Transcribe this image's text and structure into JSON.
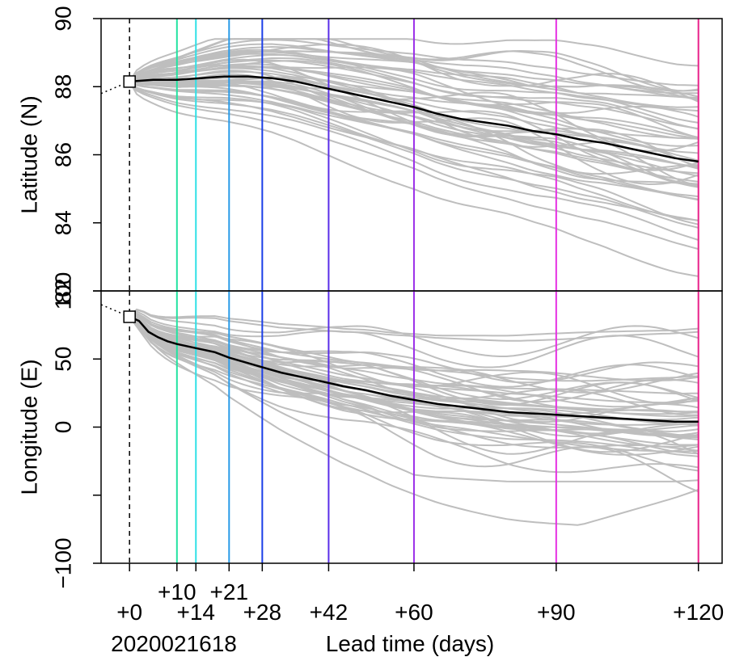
{
  "chart_data": {
    "type": "line",
    "init_label": "2020021618",
    "xlabel": "Lead time (days)",
    "xlim": [
      -6,
      125
    ],
    "lead_ticks": [
      {
        "x": 0,
        "label": "+0",
        "row": "bottom"
      },
      {
        "x": 10,
        "label": "+10",
        "row": "top"
      },
      {
        "x": 14,
        "label": "+14",
        "row": "bottom"
      },
      {
        "x": 21,
        "label": "+21",
        "row": "top"
      },
      {
        "x": 28,
        "label": "+28",
        "row": "bottom"
      },
      {
        "x": 42,
        "label": "+42",
        "row": "bottom"
      },
      {
        "x": 60,
        "label": "+60",
        "row": "bottom"
      },
      {
        "x": 90,
        "label": "+90",
        "row": "bottom"
      },
      {
        "x": 120,
        "label": "+120",
        "row": "bottom"
      }
    ],
    "lead_lines": [
      {
        "x": 10,
        "color": "#22e3a0"
      },
      {
        "x": 14,
        "color": "#2fe0e6"
      },
      {
        "x": 21,
        "color": "#2a9be8"
      },
      {
        "x": 28,
        "color": "#1c3fe8"
      },
      {
        "x": 42,
        "color": "#5a2ee8"
      },
      {
        "x": 60,
        "color": "#9a2ee8"
      },
      {
        "x": 90,
        "color": "#e62ee3"
      },
      {
        "x": 120,
        "color": "#e8208a"
      }
    ],
    "colors": {
      "ensemble": "#bebebe",
      "mean": "#000000",
      "init_line": "#000000"
    },
    "ensemble_members": 50,
    "panels": [
      {
        "name": "latitude",
        "ylabel": "Latitude (N)",
        "ylim": [
          82,
          90
        ],
        "yticks": [
          {
            "value": 82,
            "label": "82"
          },
          {
            "value": 84,
            "label": "84"
          },
          {
            "value": 86,
            "label": "86"
          },
          {
            "value": 88,
            "label": "88"
          },
          {
            "value": 90,
            "label": "90"
          }
        ],
        "initial_value": 88.15,
        "pre_init": [
          [
            -6,
            87.8
          ],
          [
            0,
            88.15
          ]
        ],
        "mean": {
          "x": [
            0,
            5,
            10,
            15,
            20,
            25,
            30,
            35,
            40,
            45,
            50,
            55,
            60,
            65,
            70,
            75,
            80,
            85,
            90,
            95,
            100,
            105,
            110,
            115,
            120
          ],
          "y": [
            88.15,
            88.2,
            88.2,
            88.25,
            88.3,
            88.3,
            88.25,
            88.15,
            88.0,
            87.85,
            87.7,
            87.55,
            87.4,
            87.2,
            87.05,
            86.95,
            86.85,
            86.7,
            86.6,
            86.45,
            86.35,
            86.2,
            86.05,
            85.9,
            85.8
          ],
          "name": ""
        }
      },
      {
        "name": "longitude",
        "ylabel": "Longitude (E)",
        "ylim": [
          -100,
          100
        ],
        "yticks": [
          {
            "value": -100,
            "label": "−100"
          },
          {
            "value": -50,
            "label": ""
          },
          {
            "value": 0,
            "label": "0"
          },
          {
            "value": 50,
            "label": "50"
          },
          {
            "value": 100,
            "label": "100"
          }
        ],
        "initial_value": 81,
        "pre_init": [
          [
            -6,
            90
          ],
          [
            0,
            81
          ]
        ],
        "mean": {
          "x": [
            0,
            2,
            4,
            6,
            8,
            10,
            14,
            18,
            21,
            25,
            28,
            32,
            36,
            40,
            45,
            50,
            55,
            60,
            65,
            70,
            75,
            80,
            85,
            90,
            95,
            100,
            105,
            110,
            115,
            120
          ],
          "y": [
            81,
            78,
            70,
            66,
            63,
            61,
            58,
            55,
            51,
            47,
            44,
            40,
            37,
            34,
            30,
            27,
            23,
            20,
            17,
            15,
            13,
            11,
            10,
            9,
            8,
            7,
            6,
            5,
            4,
            4
          ],
          "name": ""
        }
      }
    ]
  }
}
